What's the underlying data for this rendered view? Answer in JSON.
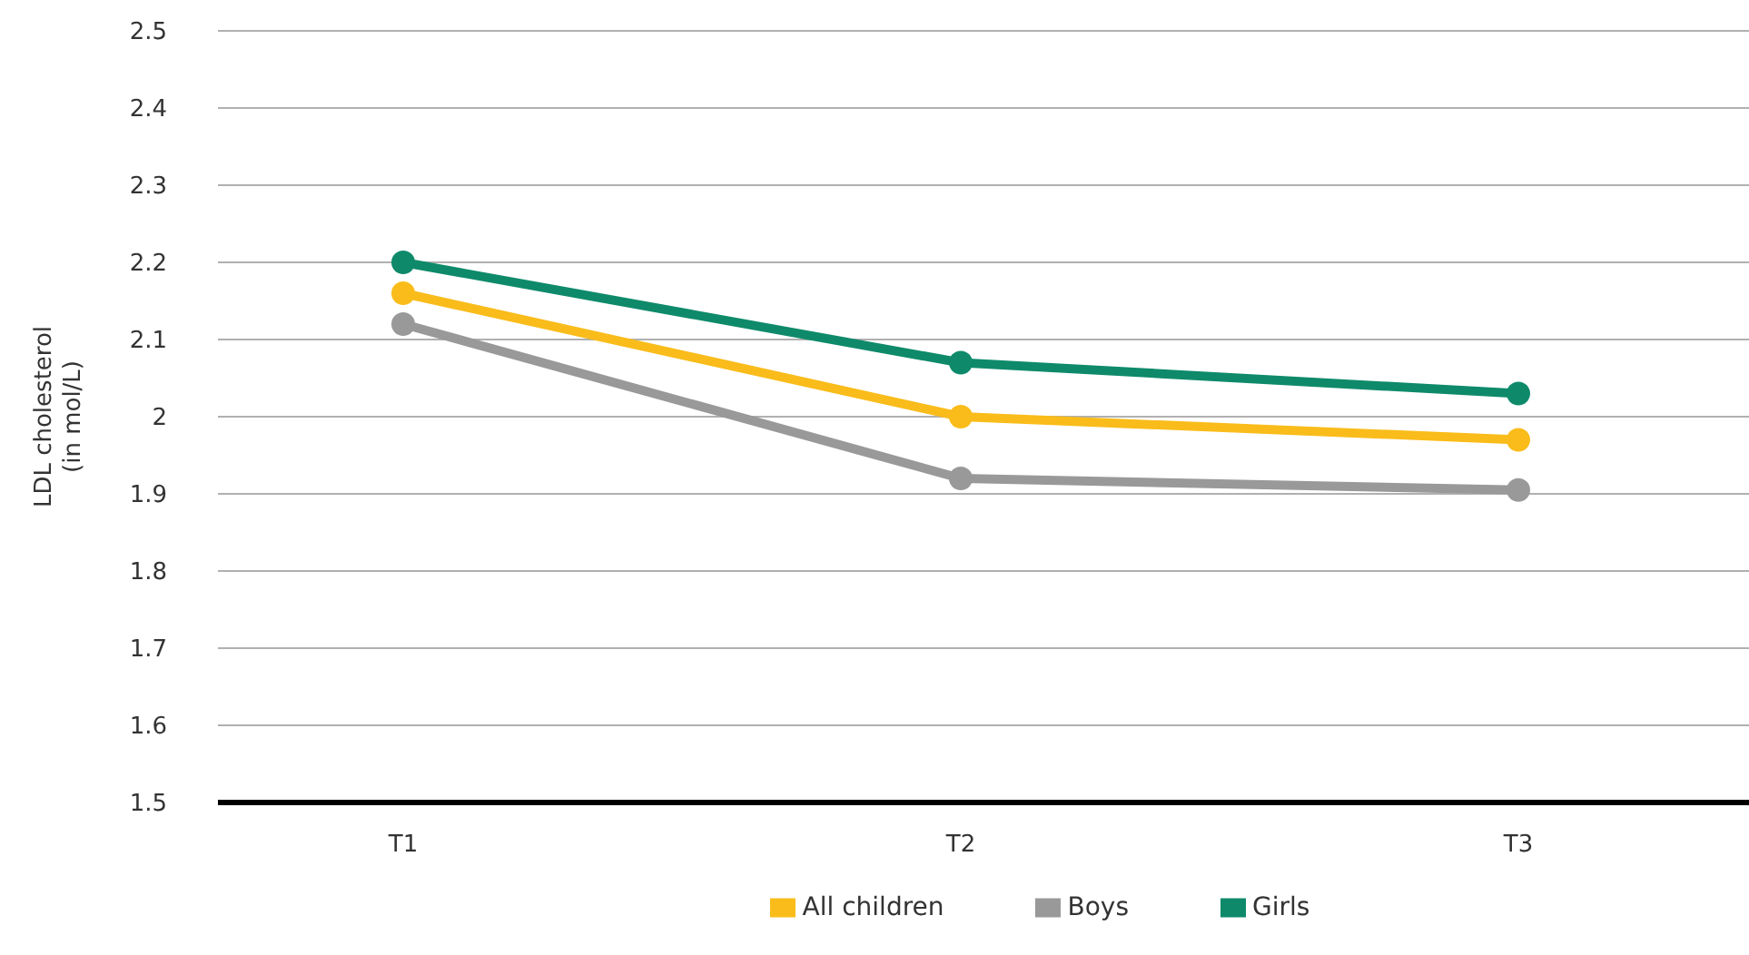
{
  "chart_data": {
    "type": "line",
    "ylabel": "LDL cholesterol (in mol/L)",
    "categories": [
      "T1",
      "T2",
      "T3"
    ],
    "series": [
      {
        "name": "All children",
        "color": "#f9bc1a",
        "values": [
          2.16,
          2.0,
          1.97
        ]
      },
      {
        "name": "Boys",
        "color": "#999999",
        "values": [
          2.12,
          1.92,
          1.905
        ]
      },
      {
        "name": "Girls",
        "color": "#0e8a6a",
        "values": [
          2.2,
          2.07,
          2.03
        ]
      }
    ],
    "ylim": [
      1.5,
      2.5
    ],
    "yticks": [
      1.5,
      1.6,
      1.7,
      1.8,
      1.9,
      2,
      2.1,
      2.2,
      2.3,
      2.4,
      2.5
    ],
    "grid": "y",
    "legend": "bottom",
    "marker": "circle",
    "line_style": "solid"
  }
}
